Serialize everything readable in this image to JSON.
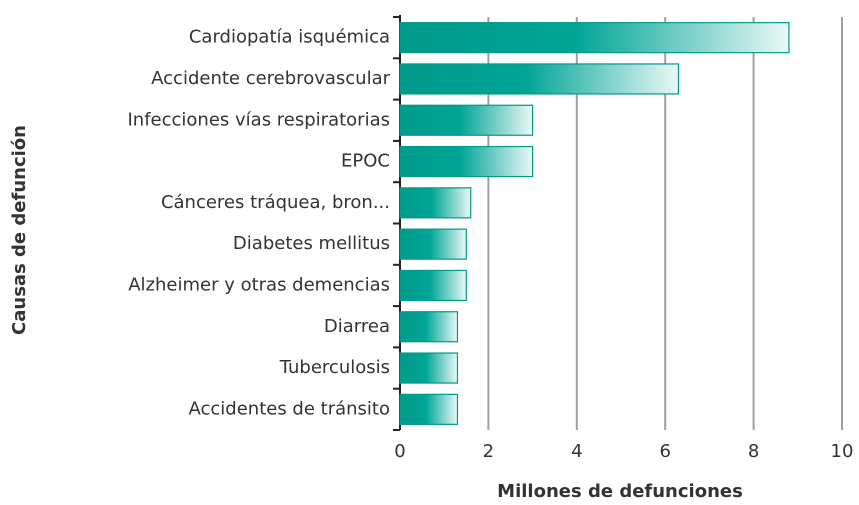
{
  "chart_data": {
    "type": "bar",
    "orientation": "horizontal",
    "categories": [
      "Cardiopatía isquémica",
      "Accidente cerebrovascular",
      "Infecciones vías respiratorias",
      "EPOC",
      "Cánceres tráquea, bron...",
      "Diabetes mellitus",
      "Alzheimer y otras demencias",
      "Diarrea",
      "Tuberculosis",
      "Accidentes de tránsito"
    ],
    "values": [
      8.8,
      6.3,
      3.0,
      3.0,
      1.6,
      1.5,
      1.5,
      1.3,
      1.3,
      1.3
    ],
    "color": "#00998a",
    "xlim": [
      0,
      10
    ],
    "xticks": [
      0,
      2,
      4,
      6,
      8,
      10
    ],
    "grid": true,
    "x_label": "Millones de defunciones",
    "y_label": "Causas de defunción"
  }
}
